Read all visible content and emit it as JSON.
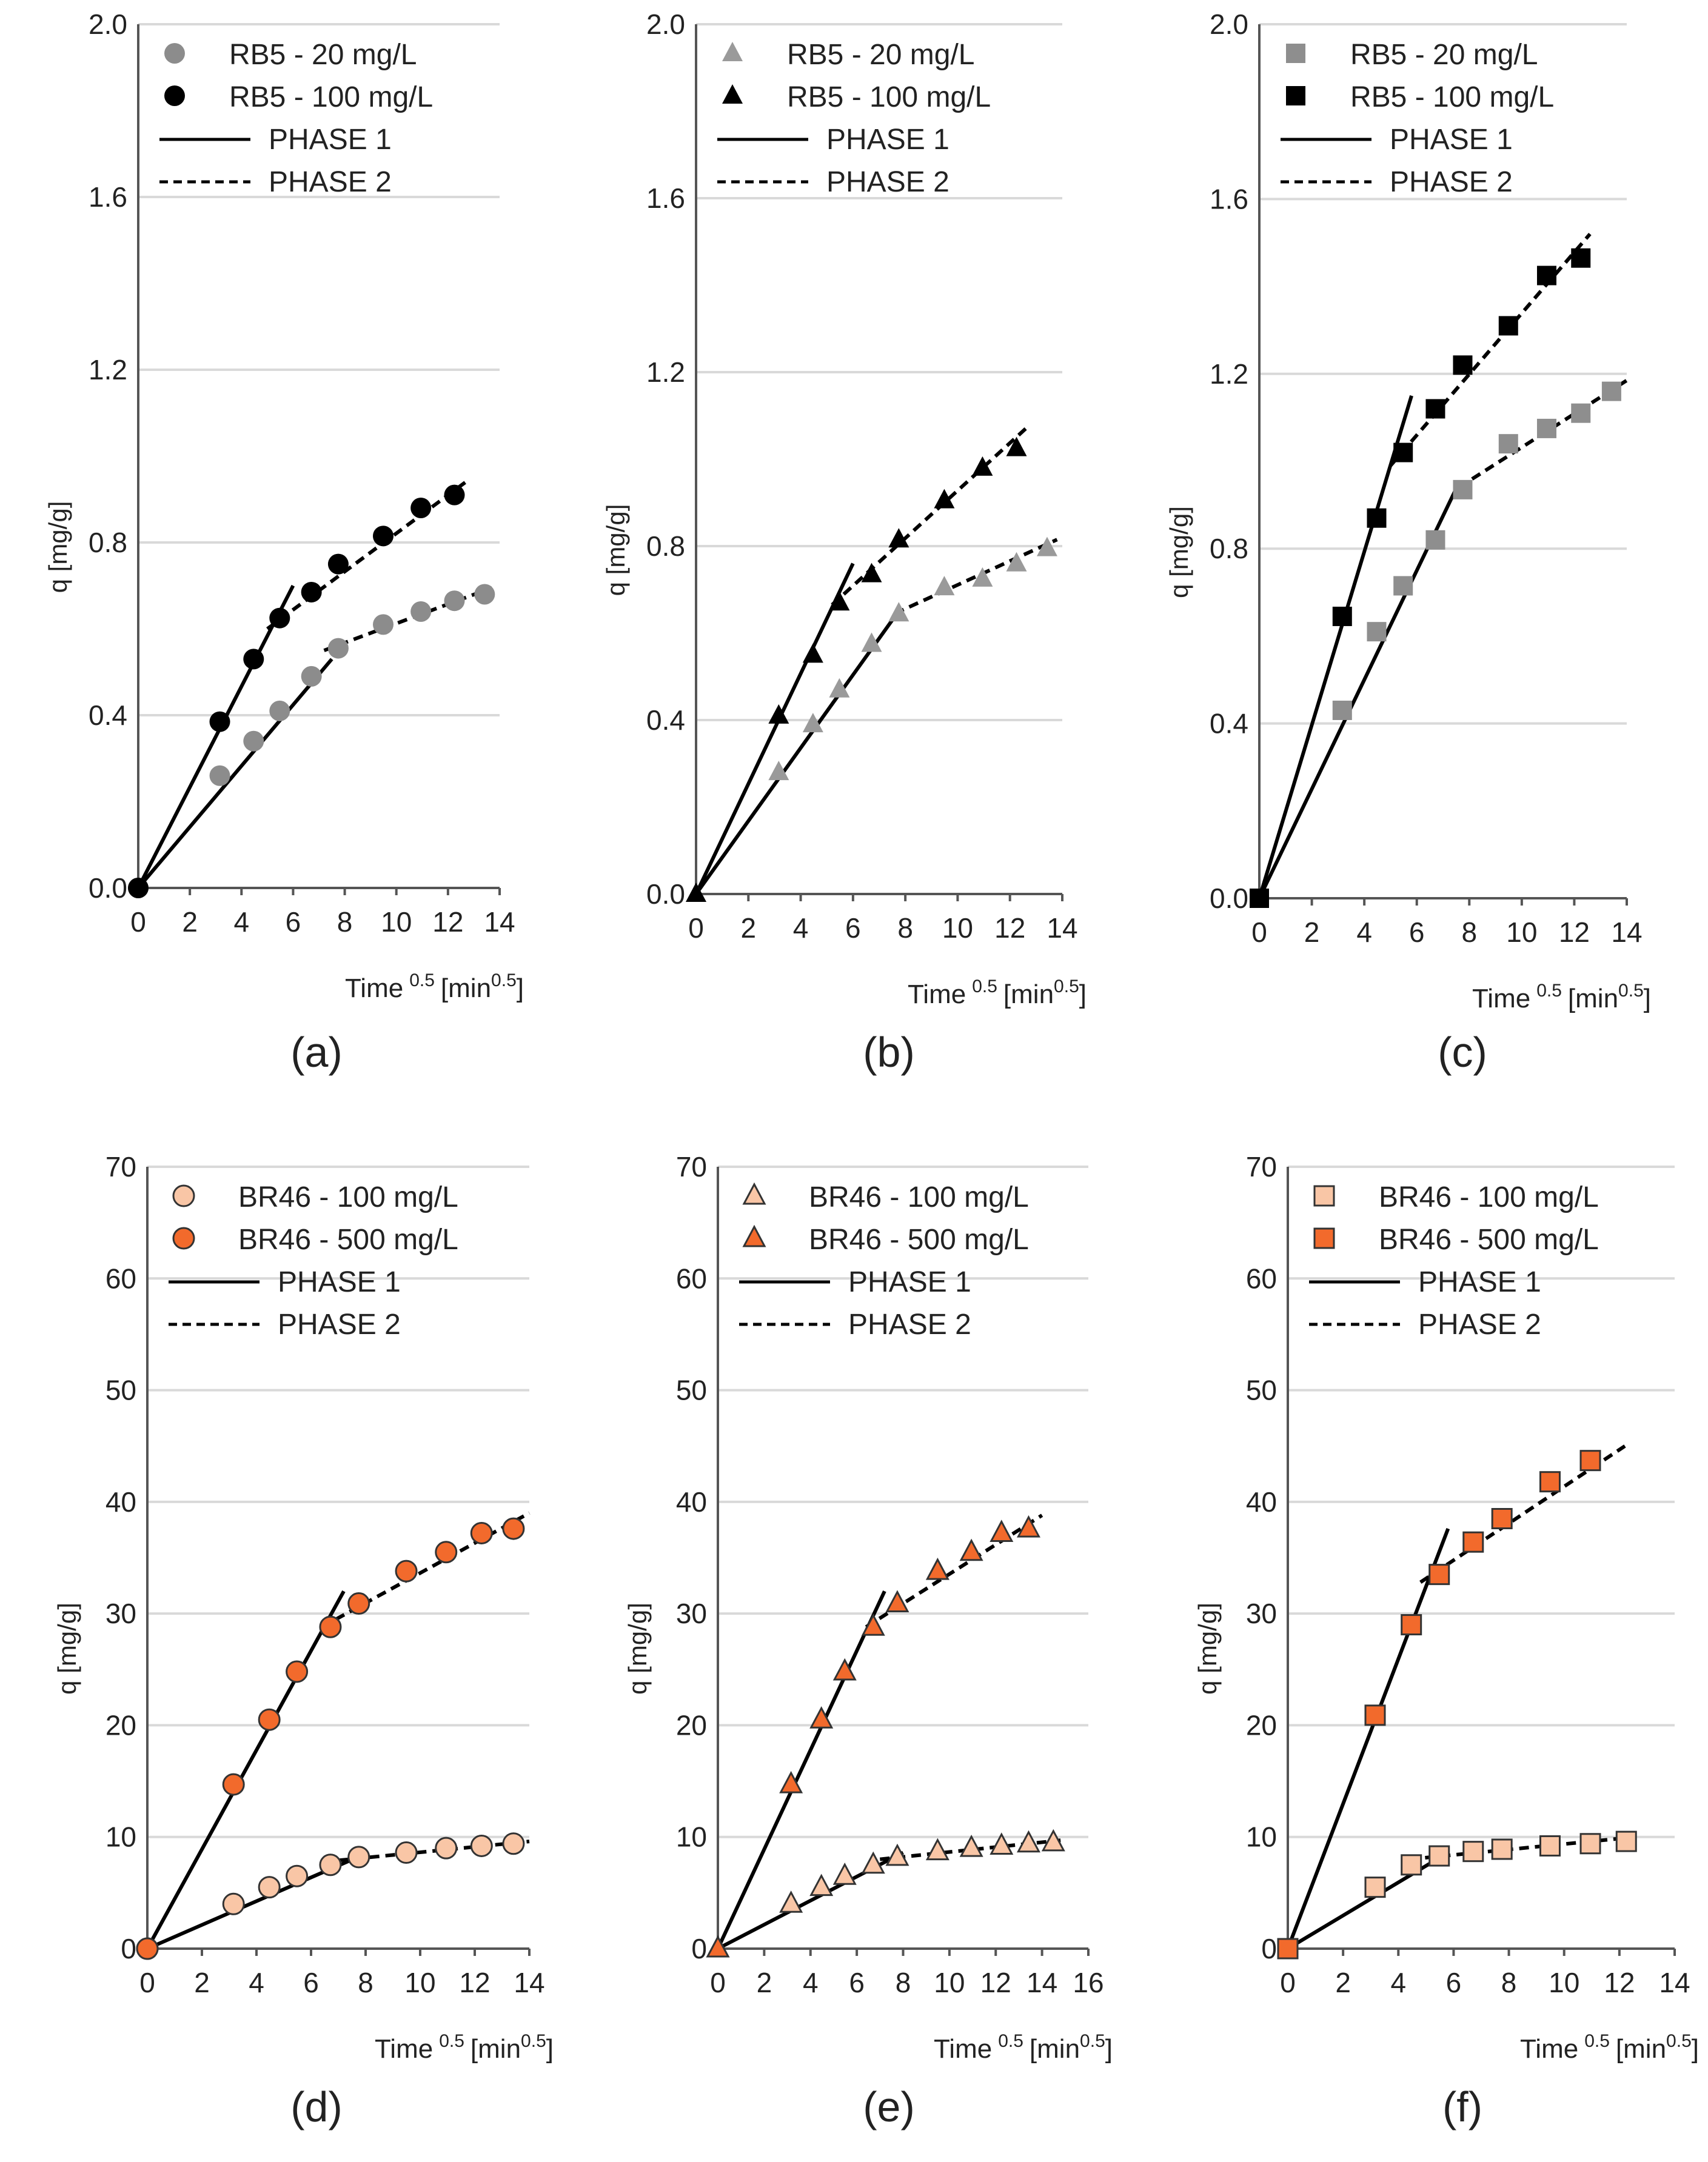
{
  "colors": {
    "rb5_low_circle": "#8c8c8c",
    "rb5_high_circle": "#000000",
    "rb5_low_triangle": "#9a9a9a",
    "rb5_high_triangle": "#000000",
    "rb5_low_square": "#8e8e8e",
    "rb5_high_square": "#000000",
    "br46_low": "#f9c6a6",
    "br46_high": "#f26a2c",
    "gridline": "#d9d9d9",
    "axis": "#555555",
    "fit_line": "#000000"
  },
  "chart_data": [
    {
      "id": "a",
      "type": "scatter",
      "panel_label": "(a)",
      "ylabel": "q [mg/g]",
      "xlabel_main": "Time",
      "xlabel_sup": "0.5",
      "xlabel_unit": "[min",
      "xlabel_unit_sup": "0.5",
      "xlabel_close": "]",
      "xlim": [
        0,
        14
      ],
      "ylim": [
        0,
        2.0
      ],
      "xticks": [
        "0",
        "2",
        "4",
        "6",
        "8",
        "10",
        "12",
        "14"
      ],
      "yticks": [
        "0.0",
        "0.4",
        "0.8",
        "1.2",
        "1.6",
        "2.0"
      ],
      "marker": "circle",
      "legend": [
        {
          "type": "marker",
          "label": "RB5 - 20 mg/L",
          "color": "#8c8c8c",
          "stroke": "none"
        },
        {
          "type": "marker",
          "label": "RB5 - 100 mg/L",
          "color": "#000000",
          "stroke": "none"
        },
        {
          "type": "solid",
          "label": "PHASE 1"
        },
        {
          "type": "dashed",
          "label": "PHASE 2"
        }
      ],
      "series": [
        {
          "name": "RB5 - 20 mg/L",
          "color": "#8c8c8c",
          "stroke": "none",
          "x": [
            0,
            3.16,
            4.47,
            5.48,
            6.71,
            7.75,
            9.49,
            10.95,
            12.25,
            13.42
          ],
          "y": [
            0,
            0.26,
            0.34,
            0.41,
            0.49,
            0.555,
            0.61,
            0.64,
            0.665,
            0.68
          ]
        },
        {
          "name": "RB5 - 100 mg/L",
          "color": "#000000",
          "stroke": "none",
          "x": [
            0,
            3.16,
            4.47,
            5.48,
            6.71,
            7.75,
            9.49,
            10.95,
            12.25
          ],
          "y": [
            0,
            0.385,
            0.53,
            0.625,
            0.685,
            0.75,
            0.815,
            0.88,
            0.91
          ]
        }
      ],
      "fits": [
        {
          "style": "solid",
          "x": [
            0,
            7.5
          ],
          "y": [
            0,
            0.53
          ]
        },
        {
          "style": "dashed",
          "x": [
            7.2,
            13.7
          ],
          "y": [
            0.55,
            0.695
          ]
        },
        {
          "style": "solid",
          "x": [
            0,
            6.0
          ],
          "y": [
            0,
            0.7
          ]
        },
        {
          "style": "dashed",
          "x": [
            5.0,
            12.8
          ],
          "y": [
            0.6,
            0.945
          ]
        }
      ]
    },
    {
      "id": "b",
      "type": "scatter",
      "panel_label": "(b)",
      "ylabel": "q [mg/g]",
      "xlabel_main": "Time",
      "xlabel_sup": "0.5",
      "xlabel_unit": "[min",
      "xlabel_unit_sup": "0.5",
      "xlabel_close": "]",
      "xlim": [
        0,
        14
      ],
      "ylim": [
        0,
        2.0
      ],
      "xticks": [
        "0",
        "2",
        "4",
        "6",
        "8",
        "10",
        "12",
        "14"
      ],
      "yticks": [
        "0.0",
        "0.4",
        "0.8",
        "1.2",
        "1.6",
        "2.0"
      ],
      "marker": "triangle",
      "legend": [
        {
          "type": "marker",
          "label": "RB5 - 20 mg/L",
          "color": "#9a9a9a",
          "stroke": "none"
        },
        {
          "type": "marker",
          "label": "RB5 - 100 mg/L",
          "color": "#000000",
          "stroke": "none"
        },
        {
          "type": "solid",
          "label": "PHASE 1"
        },
        {
          "type": "dashed",
          "label": "PHASE 2"
        }
      ],
      "series": [
        {
          "name": "RB5 - 20 mg/L",
          "color": "#9a9a9a",
          "stroke": "none",
          "x": [
            0,
            3.16,
            4.47,
            5.48,
            6.71,
            7.75,
            9.49,
            10.95,
            12.25,
            13.42
          ],
          "y": [
            0,
            0.28,
            0.39,
            0.47,
            0.575,
            0.645,
            0.705,
            0.725,
            0.76,
            0.795
          ]
        },
        {
          "name": "RB5 - 100 mg/L",
          "color": "#000000",
          "stroke": "none",
          "x": [
            0,
            3.16,
            4.47,
            5.48,
            6.71,
            7.75,
            9.49,
            10.95,
            12.25
          ],
          "y": [
            0,
            0.41,
            0.55,
            0.67,
            0.735,
            0.815,
            0.905,
            0.98,
            1.025
          ]
        }
      ],
      "fits": [
        {
          "style": "solid",
          "x": [
            0,
            7.8
          ],
          "y": [
            0,
            0.655
          ]
        },
        {
          "style": "dashed",
          "x": [
            7.6,
            13.8
          ],
          "y": [
            0.645,
            0.815
          ]
        },
        {
          "style": "solid",
          "x": [
            0,
            6.0
          ],
          "y": [
            0,
            0.76
          ]
        },
        {
          "style": "dashed",
          "x": [
            5.2,
            12.6
          ],
          "y": [
            0.665,
            1.07
          ]
        }
      ]
    },
    {
      "id": "c",
      "type": "scatter",
      "panel_label": "(c)",
      "ylabel": "q [mg/g]",
      "xlabel_main": "Time",
      "xlabel_sup": "0.5",
      "xlabel_unit": "[min",
      "xlabel_unit_sup": "0.5",
      "xlabel_close": "]",
      "xlim": [
        0,
        14
      ],
      "ylim": [
        0,
        2.0
      ],
      "xticks": [
        "0",
        "2",
        "4",
        "6",
        "8",
        "10",
        "12",
        "14"
      ],
      "yticks": [
        "0.0",
        "0.4",
        "0.8",
        "1.2",
        "1.6",
        "2.0"
      ],
      "marker": "square",
      "legend": [
        {
          "type": "marker",
          "label": "RB5 - 20 mg/L",
          "color": "#8e8e8e",
          "stroke": "none"
        },
        {
          "type": "marker",
          "label": "RB5 - 100 mg/L",
          "color": "#000000",
          "stroke": "none"
        },
        {
          "type": "solid",
          "label": "PHASE 1"
        },
        {
          "type": "dashed",
          "label": "PHASE 2"
        }
      ],
      "series": [
        {
          "name": "RB5 - 20 mg/L",
          "color": "#8e8e8e",
          "stroke": "none",
          "x": [
            0,
            3.16,
            4.47,
            5.48,
            6.71,
            7.75,
            9.49,
            10.95,
            12.25,
            13.42
          ],
          "y": [
            0,
            0.43,
            0.61,
            0.715,
            0.82,
            0.935,
            1.04,
            1.075,
            1.11,
            1.16
          ]
        },
        {
          "name": "RB5 - 100 mg/L",
          "color": "#000000",
          "stroke": "none",
          "x": [
            0,
            3.16,
            4.47,
            5.48,
            6.71,
            7.75,
            9.49,
            10.95,
            12.25
          ],
          "y": [
            0,
            0.645,
            0.87,
            1.02,
            1.12,
            1.22,
            1.31,
            1.425,
            1.465
          ]
        }
      ],
      "fits": [
        {
          "style": "solid",
          "x": [
            0,
            7.6
          ],
          "y": [
            0,
            0.95
          ]
        },
        {
          "style": "dashed",
          "x": [
            7.6,
            14.0
          ],
          "y": [
            0.94,
            1.185
          ]
        },
        {
          "style": "solid",
          "x": [
            0,
            5.8
          ],
          "y": [
            0,
            1.15
          ]
        },
        {
          "style": "dashed",
          "x": [
            5.0,
            12.6
          ],
          "y": [
            0.99,
            1.52
          ]
        }
      ]
    },
    {
      "id": "d",
      "type": "scatter",
      "panel_label": "(d)",
      "ylabel": "q [mg/g]",
      "xlabel_main": "Time",
      "xlabel_sup": "0.5",
      "xlabel_unit": "[min",
      "xlabel_unit_sup": "0.5",
      "xlabel_close": "]",
      "xlim": [
        0,
        14
      ],
      "ylim": [
        0,
        70
      ],
      "xticks": [
        "0",
        "2",
        "4",
        "6",
        "8",
        "10",
        "12",
        "14"
      ],
      "yticks": [
        "0",
        "10",
        "20",
        "30",
        "40",
        "50",
        "60",
        "70"
      ],
      "marker": "circle",
      "legend": [
        {
          "type": "marker",
          "label": "BR46 - 100 mg/L",
          "color": "#f9c6a6",
          "stroke": "#333333"
        },
        {
          "type": "marker",
          "label": "BR46 - 500 mg/L",
          "color": "#f26a2c",
          "stroke": "#333333"
        },
        {
          "type": "solid",
          "label": "PHASE 1"
        },
        {
          "type": "dashed",
          "label": "PHASE 2"
        }
      ],
      "series": [
        {
          "name": "BR46 - 100 mg/L",
          "color": "#f9c6a6",
          "stroke": "#333333",
          "x": [
            0,
            3.16,
            4.47,
            5.48,
            6.71,
            7.75,
            9.49,
            10.95,
            12.25,
            13.42
          ],
          "y": [
            0,
            4.0,
            5.5,
            6.5,
            7.5,
            8.2,
            8.6,
            9.0,
            9.2,
            9.4
          ]
        },
        {
          "name": "BR46 - 500 mg/L",
          "color": "#f26a2c",
          "stroke": "#333333",
          "x": [
            0,
            3.16,
            4.47,
            5.48,
            6.71,
            7.75,
            9.49,
            10.95,
            12.25,
            13.42
          ],
          "y": [
            0,
            14.7,
            20.5,
            24.8,
            28.8,
            30.9,
            33.8,
            35.5,
            37.2,
            37.6
          ]
        }
      ],
      "fits": [
        {
          "style": "solid",
          "x": [
            0,
            8.0
          ],
          "y": [
            0,
            8.5
          ]
        },
        {
          "style": "dashed",
          "x": [
            7.0,
            14.0
          ],
          "y": [
            7.9,
            9.6
          ]
        },
        {
          "style": "solid",
          "x": [
            0,
            7.2
          ],
          "y": [
            0,
            32.0
          ]
        },
        {
          "style": "dashed",
          "x": [
            6.4,
            14.0
          ],
          "y": [
            28.8,
            39.0
          ]
        }
      ]
    },
    {
      "id": "e",
      "type": "scatter",
      "panel_label": "(e)",
      "ylabel": "q [mg/g]",
      "xlabel_main": "Time",
      "xlabel_sup": "0.5",
      "xlabel_unit": "[min",
      "xlabel_unit_sup": "0.5",
      "xlabel_close": "]",
      "xlim": [
        0,
        16
      ],
      "ylim": [
        0,
        70
      ],
      "xticks": [
        "0",
        "2",
        "4",
        "6",
        "8",
        "10",
        "12",
        "14",
        "16"
      ],
      "yticks": [
        "0",
        "10",
        "20",
        "30",
        "40",
        "50",
        "60",
        "70"
      ],
      "marker": "triangle",
      "legend": [
        {
          "type": "marker",
          "label": "BR46 - 100 mg/L",
          "color": "#f9c6a6",
          "stroke": "#333333"
        },
        {
          "type": "marker",
          "label": "BR46 - 500 mg/L",
          "color": "#f26a2c",
          "stroke": "#333333"
        },
        {
          "type": "solid",
          "label": "PHASE 1"
        },
        {
          "type": "dashed",
          "label": "PHASE 2"
        }
      ],
      "series": [
        {
          "name": "BR46 - 100 mg/L",
          "color": "#f9c6a6",
          "stroke": "#333333",
          "x": [
            0,
            3.16,
            4.47,
            5.48,
            6.71,
            7.75,
            9.49,
            10.95,
            12.25,
            13.42,
            14.49
          ],
          "y": [
            0,
            4.0,
            5.5,
            6.5,
            7.5,
            8.2,
            8.7,
            9.0,
            9.2,
            9.4,
            9.5
          ]
        },
        {
          "name": "BR46 - 500 mg/L",
          "color": "#f26a2c",
          "stroke": "#333333",
          "x": [
            0,
            3.16,
            4.47,
            5.48,
            6.71,
            7.75,
            9.49,
            10.95,
            12.25,
            13.42
          ],
          "y": [
            0,
            14.7,
            20.5,
            24.8,
            28.8,
            30.9,
            33.8,
            35.5,
            37.2,
            37.6
          ]
        }
      ],
      "fits": [
        {
          "style": "solid",
          "x": [
            0,
            8.0
          ],
          "y": [
            0,
            8.6
          ]
        },
        {
          "style": "dashed",
          "x": [
            7.0,
            14.8
          ],
          "y": [
            8.0,
            9.7
          ]
        },
        {
          "style": "solid",
          "x": [
            0,
            7.2
          ],
          "y": [
            0,
            32.0
          ]
        },
        {
          "style": "dashed",
          "x": [
            6.4,
            14.0
          ],
          "y": [
            28.8,
            38.8
          ]
        }
      ]
    },
    {
      "id": "f",
      "type": "scatter",
      "panel_label": "(f)",
      "ylabel": "q [mg/g]",
      "xlabel_main": "Time",
      "xlabel_sup": "0.5",
      "xlabel_unit": "[min",
      "xlabel_unit_sup": "0.5",
      "xlabel_close": "]",
      "xlim": [
        0,
        14
      ],
      "ylim": [
        0,
        70
      ],
      "xticks": [
        "0",
        "2",
        "4",
        "6",
        "8",
        "10",
        "12",
        "14"
      ],
      "yticks": [
        "0",
        "10",
        "20",
        "30",
        "40",
        "50",
        "60",
        "70"
      ],
      "marker": "square",
      "legend": [
        {
          "type": "marker",
          "label": "BR46 - 100 mg/L",
          "color": "#f9c6a6",
          "stroke": "#333333"
        },
        {
          "type": "marker",
          "label": "BR46 - 500 mg/L",
          "color": "#f26a2c",
          "stroke": "#333333"
        },
        {
          "type": "solid",
          "label": "PHASE 1"
        },
        {
          "type": "dashed",
          "label": "PHASE 2"
        }
      ],
      "series": [
        {
          "name": "BR46 - 100 mg/L",
          "color": "#f9c6a6",
          "stroke": "#333333",
          "x": [
            0,
            3.16,
            4.47,
            5.48,
            6.71,
            7.75,
            9.49,
            10.95,
            12.25
          ],
          "y": [
            0,
            5.5,
            7.5,
            8.3,
            8.7,
            8.9,
            9.2,
            9.4,
            9.6
          ]
        },
        {
          "name": "BR46 - 500 mg/L",
          "color": "#f26a2c",
          "stroke": "#333333",
          "x": [
            0,
            3.16,
            4.47,
            5.48,
            6.71,
            7.75,
            9.49,
            10.95
          ],
          "y": [
            0,
            20.9,
            29.0,
            33.5,
            36.4,
            38.5,
            41.8,
            43.7
          ]
        }
      ],
      "fits": [
        {
          "style": "solid",
          "x": [
            0,
            5.8
          ],
          "y": [
            0,
            8.6
          ]
        },
        {
          "style": "dashed",
          "x": [
            4.4,
            12.6
          ],
          "y": [
            8.0,
            10.0
          ]
        },
        {
          "style": "solid",
          "x": [
            0,
            5.8
          ],
          "y": [
            0,
            37.6
          ]
        },
        {
          "style": "dashed",
          "x": [
            4.8,
            12.2
          ],
          "y": [
            32.8,
            45.0
          ]
        }
      ]
    }
  ]
}
